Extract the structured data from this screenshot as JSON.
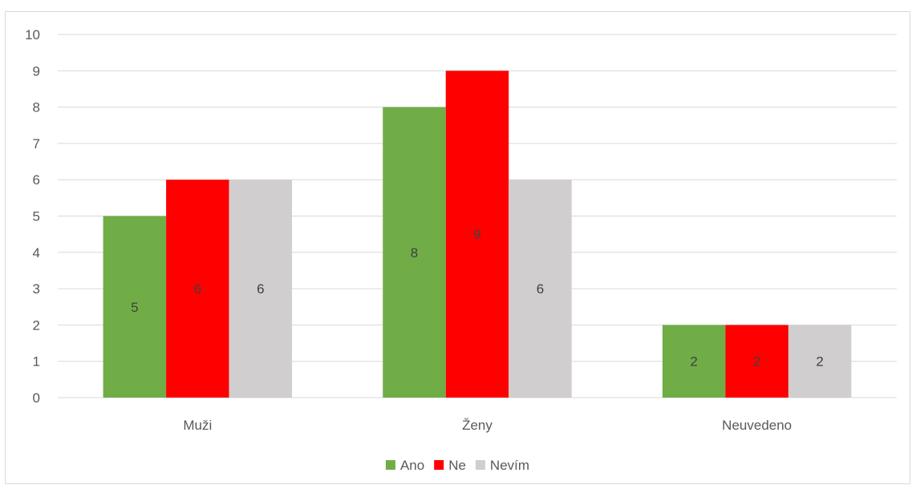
{
  "chart_data": {
    "type": "bar",
    "categories": [
      "Muži",
      "Ženy",
      "Neuvedeno"
    ],
    "series": [
      {
        "name": "Ano",
        "values": [
          5,
          8,
          2
        ],
        "color": "#70ad47"
      },
      {
        "name": "Ne",
        "values": [
          6,
          9,
          2
        ],
        "color": "#ff0000"
      },
      {
        "name": "Nevím",
        "values": [
          6,
          6,
          2
        ],
        "color": "#d0cece"
      }
    ],
    "title": "",
    "xlabel": "",
    "ylabel": "",
    "ylim": [
      0,
      10
    ],
    "yticks": [
      0,
      1,
      2,
      3,
      4,
      5,
      6,
      7,
      8,
      9,
      10
    ],
    "grid": true,
    "legend": "bottom",
    "data_labels": true
  }
}
